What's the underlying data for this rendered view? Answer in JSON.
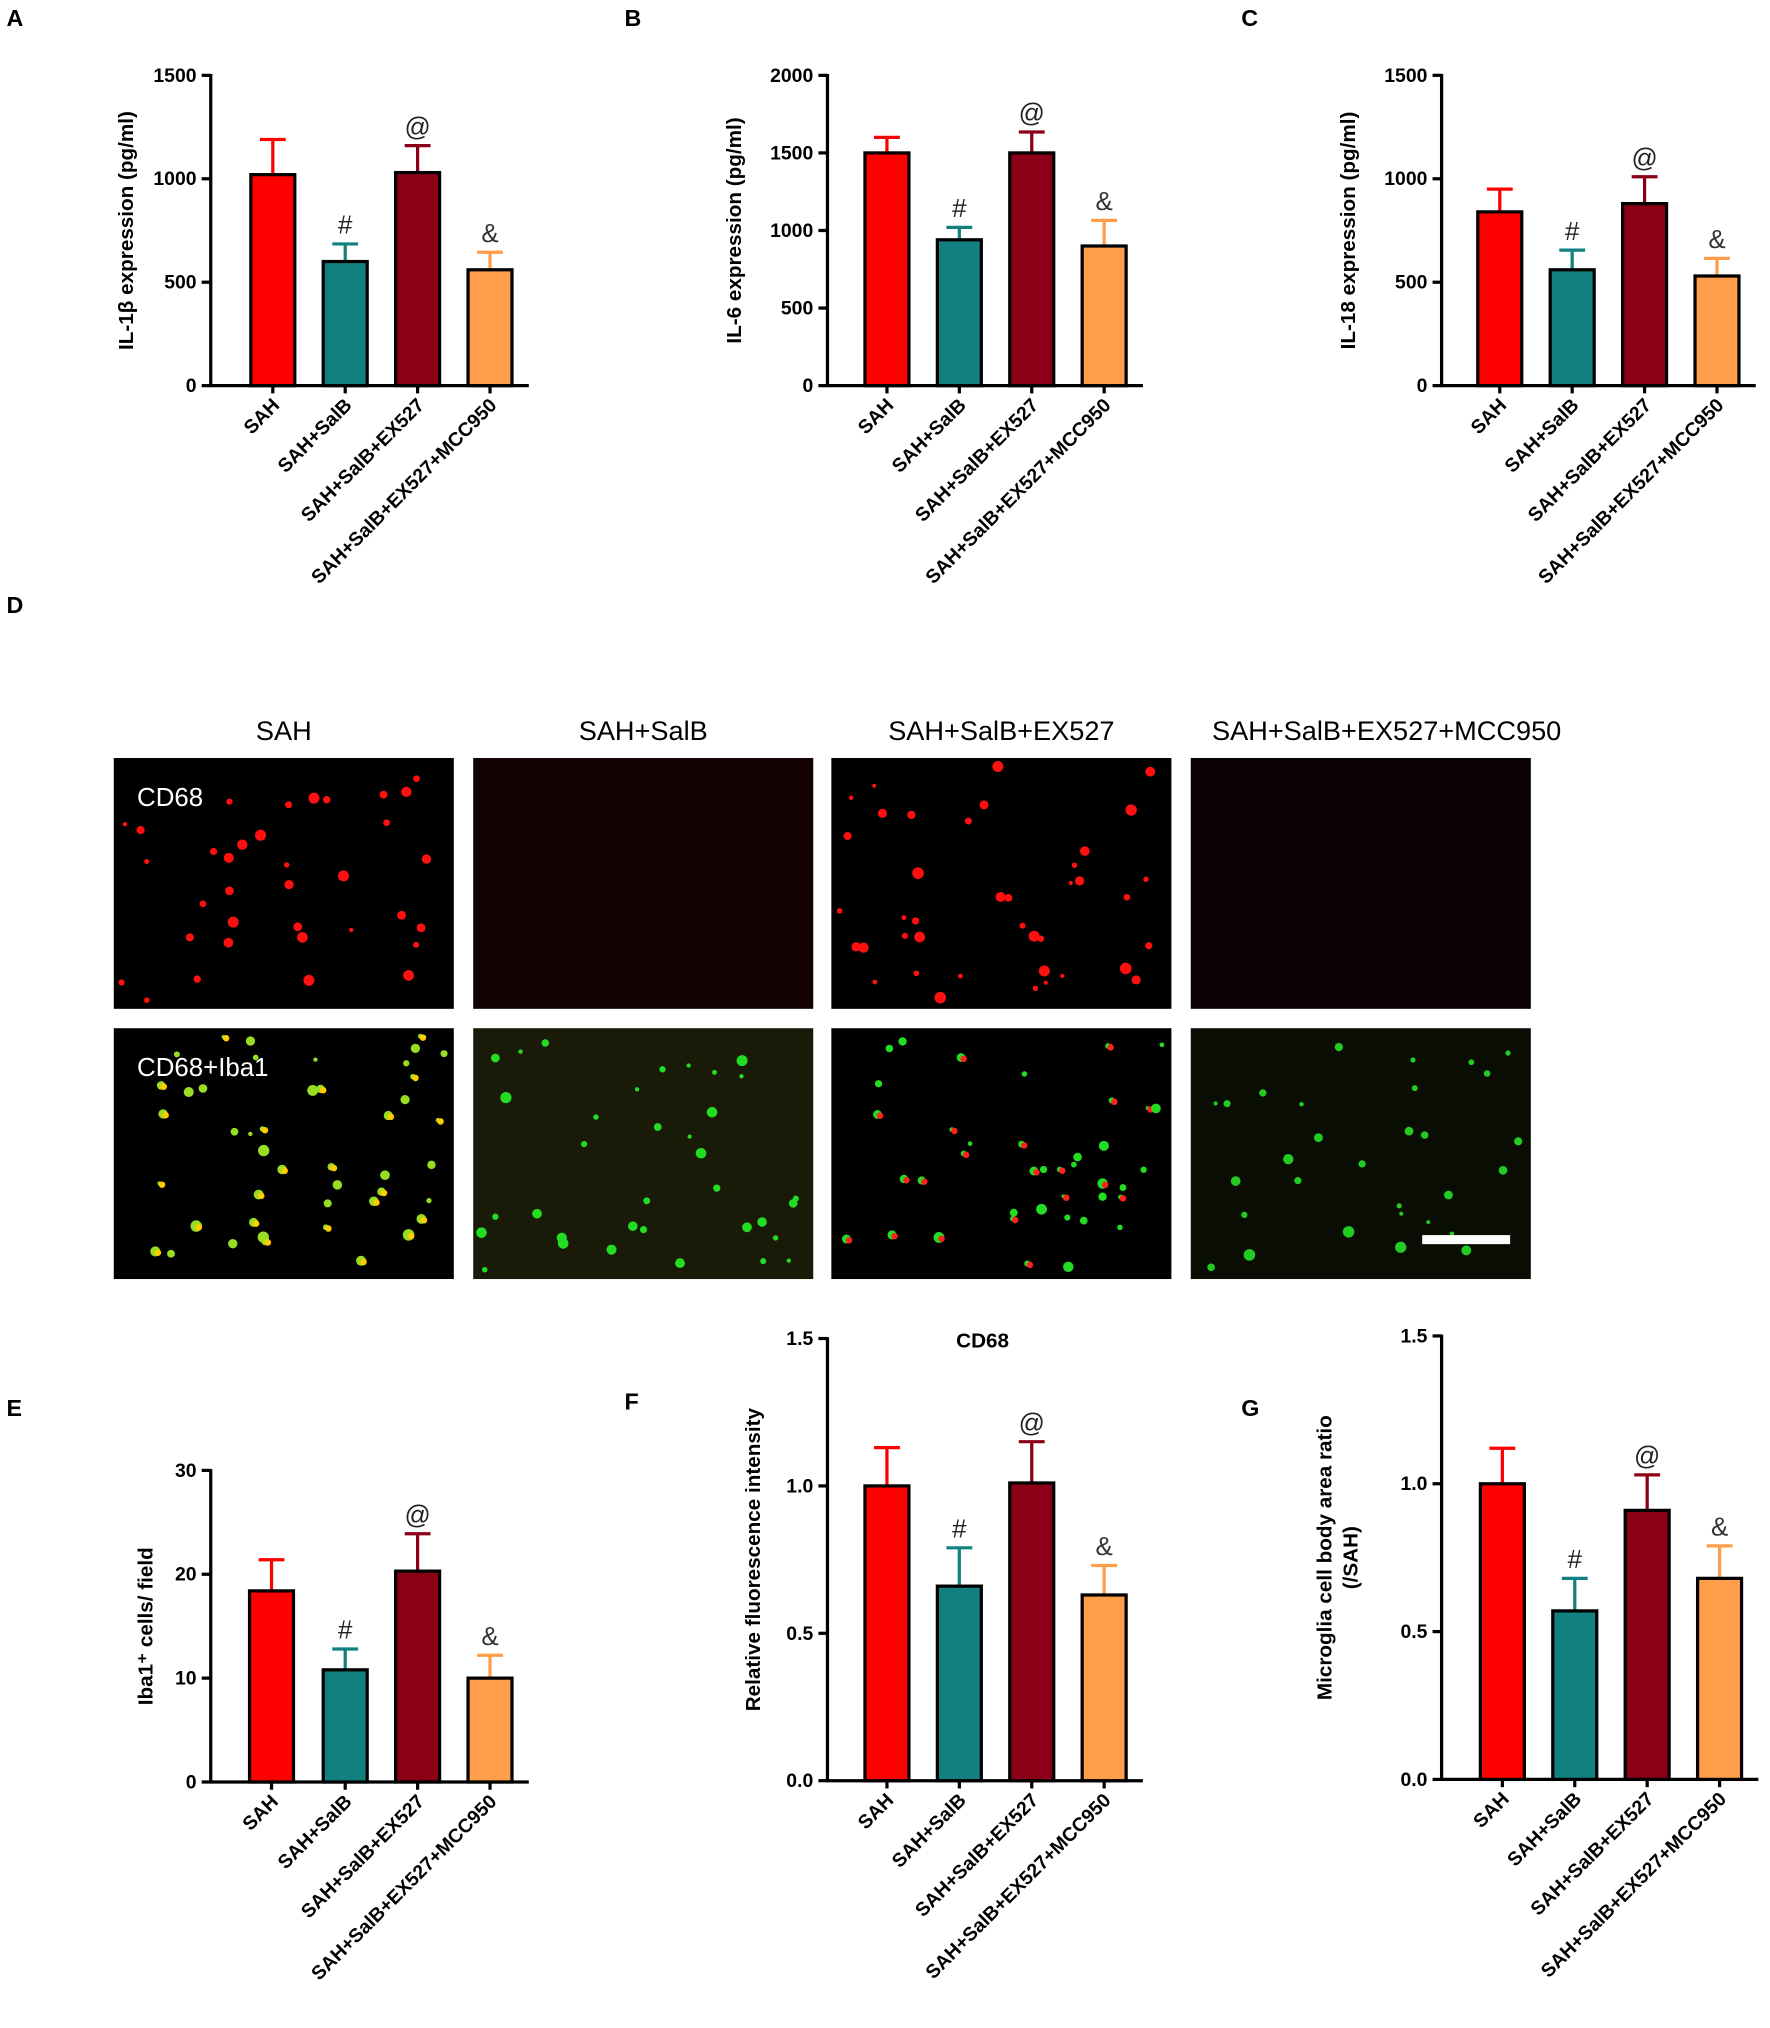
{
  "chart_data": [
    {
      "type": "bar",
      "panel": "A",
      "y_label": "IL-1β expression (pg/ml)",
      "categories": [
        "SAH",
        "SAH+SalB",
        "SAH+SalB+EX527",
        "SAH+SalB+EX527+MCC950"
      ],
      "values": [
        1020,
        600,
        1030,
        560
      ],
      "errors": [
        170,
        85,
        130,
        85
      ],
      "markers": [
        null,
        "#",
        "@",
        "&"
      ],
      "colors": [
        "#ff0000",
        "#138080",
        "#8b0016",
        "#ff9e4a"
      ],
      "ylim": [
        0,
        1500
      ],
      "yticks": [
        0,
        500,
        1000,
        1500
      ]
    },
    {
      "type": "bar",
      "panel": "B",
      "y_label": "IL-6 expression (pg/ml)",
      "categories": [
        "SAH",
        "SAH+SalB",
        "SAH+SalB+EX527",
        "SAH+SalB+EX527+MCC950"
      ],
      "values": [
        1500,
        940,
        1500,
        900
      ],
      "errors": [
        100,
        80,
        135,
        165
      ],
      "markers": [
        null,
        "#",
        "@",
        "&"
      ],
      "colors": [
        "#ff0000",
        "#138080",
        "#8b0016",
        "#ff9e4a"
      ],
      "ylim": [
        0,
        2000
      ],
      "yticks": [
        0,
        500,
        1000,
        1500,
        2000
      ]
    },
    {
      "type": "bar",
      "panel": "C",
      "y_label": "IL-18 expression (pg/ml)",
      "categories": [
        "SAH",
        "SAH+SalB",
        "SAH+SalB+EX527",
        "SAH+SalB+EX527+MCC950"
      ],
      "values": [
        840,
        560,
        880,
        530
      ],
      "errors": [
        110,
        95,
        130,
        85
      ],
      "markers": [
        null,
        "#",
        "@",
        "&"
      ],
      "colors": [
        "#ff0000",
        "#138080",
        "#8b0016",
        "#ff9e4a"
      ],
      "ylim": [
        0,
        1500
      ],
      "yticks": [
        0,
        500,
        1000,
        1500
      ]
    },
    {
      "type": "bar",
      "panel": "E",
      "y_label": "Iba1⁺ cells/ field",
      "categories": [
        "SAH",
        "SAH+SalB",
        "SAH+SalB+EX527",
        "SAH+SalB+EX527+MCC950"
      ],
      "values": [
        18.4,
        10.8,
        20.3,
        10
      ],
      "errors": [
        3,
        2,
        3.6,
        2.2
      ],
      "markers": [
        null,
        "#",
        "@",
        "&"
      ],
      "colors": [
        "#ff0000",
        "#138080",
        "#8b0016",
        "#ff9e4a"
      ],
      "ylim": [
        0,
        30
      ],
      "yticks": [
        0,
        10,
        20,
        30
      ]
    },
    {
      "type": "bar",
      "panel": "F",
      "title": "CD68",
      "y_label": "Relative fluorescence intensity",
      "categories": [
        "SAH",
        "SAH+SalB",
        "SAH+SalB+EX527",
        "SAH+SalB+EX527+MCC950"
      ],
      "values": [
        1.0,
        0.66,
        1.01,
        0.63
      ],
      "errors": [
        0.13,
        0.13,
        0.14,
        0.1
      ],
      "markers": [
        null,
        "#",
        "@",
        "&"
      ],
      "colors": [
        "#ff0000",
        "#138080",
        "#8b0016",
        "#ff9e4a"
      ],
      "ylim": [
        0,
        1.5
      ],
      "yticks": [
        {
          "value": 0,
          "label": "0.0"
        },
        {
          "value": 0.5,
          "label": "0.5"
        },
        {
          "value": 1,
          "label": "1.0"
        },
        {
          "value": 1.5,
          "label": "1.5"
        }
      ]
    },
    {
      "type": "bar",
      "panel": "G",
      "y_label": [
        "Microglia cell body area ratio",
        "(/SAH)"
      ],
      "categories": [
        "SAH",
        "SAH+SalB",
        "SAH+SalB+EX527",
        "SAH+SalB+EX527+MCC950"
      ],
      "values": [
        1.0,
        0.57,
        0.91,
        0.68
      ],
      "errors": [
        0.12,
        0.11,
        0.12,
        0.11
      ],
      "markers": [
        null,
        "#",
        "@",
        "&"
      ],
      "colors": [
        "#ff0000",
        "#138080",
        "#8b0016",
        "#ff9e4a"
      ],
      "ylim": [
        0,
        1.5
      ],
      "yticks": [
        {
          "value": 0,
          "label": "0.0"
        },
        {
          "value": 0.5,
          "label": "0.5"
        },
        {
          "value": 1,
          "label": "1.0"
        },
        {
          "value": 1.5,
          "label": "1.5"
        }
      ]
    }
  ],
  "micrograph": {
    "panel": "D",
    "columns": [
      "SAH",
      "SAH+SalB",
      "SAH+SalB+EX527",
      "SAH+SalB+EX527+MCC950"
    ],
    "rows": [
      "CD68",
      "CD68+Iba1"
    ]
  }
}
